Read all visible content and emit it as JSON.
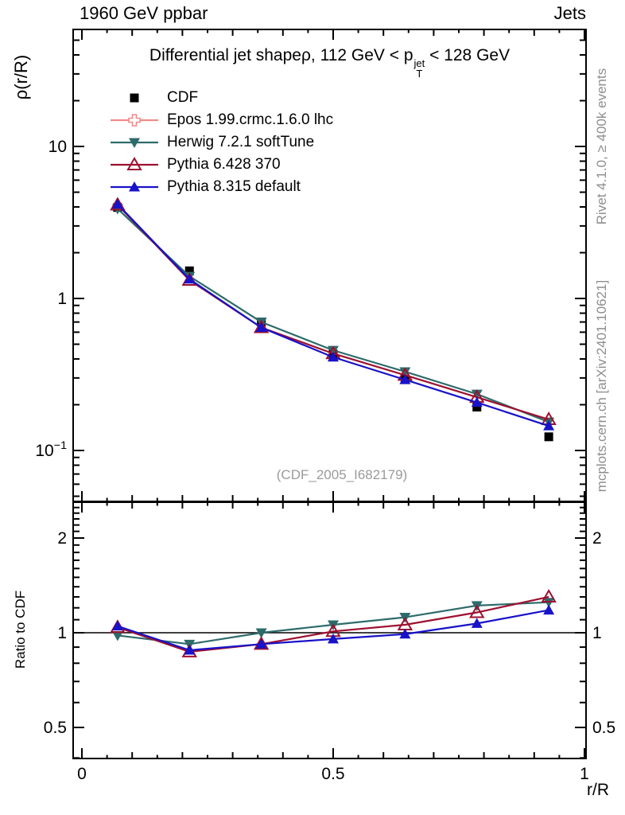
{
  "header": {
    "left_label": "1960 GeV ppbar",
    "right_label": "Jets"
  },
  "title": {
    "prefix": "Differential jet shapeρ, 112 GeV < p",
    "p_sup": "jet",
    "p_sub": "T",
    "suffix": " < 128 GeV"
  },
  "side_notes": {
    "rivet": "Rivet 4.1.0, ≥ 400k events",
    "mcplots": "mcplots.cern.ch [arXiv:2401.10621]"
  },
  "watermark": "(CDF_2005_I682179)",
  "axis_titles": {
    "y_main": "ρ(r/R)",
    "y_ratio": "Ratio to CDF",
    "x": "r/R"
  },
  "colors": {
    "cdf": "#000000",
    "epos": "#f28b8b",
    "herwig": "#2d6b6b",
    "pythia6": "#9e1030",
    "pythia8": "#1812c8",
    "gray_text": "#8e8e8e",
    "frame": "#000000"
  },
  "chart_data": {
    "type": "line",
    "title": "Differential jet shape ρ, 112 GeV < pT(jet) < 128 GeV",
    "xlabel": "r/R",
    "x": [
      0.071,
      0.214,
      0.357,
      0.5,
      0.643,
      0.786,
      0.929
    ],
    "x_ticks": [
      {
        "label": "0",
        "value": 0
      },
      {
        "label": "0.5",
        "value": 0.5
      },
      {
        "label": "1",
        "value": 1
      }
    ],
    "x_minor_step": 0.05,
    "xlim": [
      -0.017,
      1.003
    ],
    "grid": false,
    "legend_position": "top-left-inside",
    "main_panel": {
      "ylabel": "ρ(r/R)",
      "yscale": "log",
      "ylim": [
        0.047,
        59
      ],
      "y_ticks": [
        {
          "label": "10",
          "value": 10
        },
        {
          "label": "1",
          "value": 1
        },
        {
          "label": "10",
          "sup": "−1",
          "value": 0.1
        }
      ]
    },
    "ratio_panel": {
      "ylabel": "Ratio to CDF",
      "yscale": "log",
      "ylim": [
        0.4,
        2.57
      ],
      "y_ticks": [
        {
          "label": "2",
          "value": 2
        },
        {
          "label": "1",
          "value": 1
        },
        {
          "label": "0.5",
          "value": 0.5
        }
      ],
      "y_minor_ticks": [
        0.4,
        0.6,
        0.7,
        0.8,
        0.9,
        1.1,
        1.2,
        1.3,
        1.4,
        1.5,
        1.6,
        1.7,
        1.8,
        1.9,
        2.1,
        2.2,
        2.3,
        2.4,
        2.5
      ],
      "reference_line": 1
    },
    "series": [
      {
        "name": "cdf",
        "label": "CDF",
        "color": "#000000",
        "marker": "square-filled",
        "line": false,
        "curve_visible": true,
        "values": [
          3.97,
          1.52,
          0.7,
          0.43,
          0.295,
          0.193,
          0.123
        ],
        "ratios": null
      },
      {
        "name": "epos",
        "label": "Epos 1.99.crmc.1.6.0 lhc",
        "color": "#f28b8b",
        "marker": "cross-open",
        "line": true,
        "curve_visible": false,
        "values": null,
        "ratios": null
      },
      {
        "name": "herwig",
        "label": "Herwig 7.2.1 softTune",
        "color": "#2d6b6b",
        "marker": "triangle-down-filled",
        "line": true,
        "curve_visible": true,
        "values": [
          3.89,
          1.4,
          0.7,
          0.456,
          0.33,
          0.235,
          0.154
        ],
        "ratios": [
          0.98,
          0.92,
          1.0,
          1.06,
          1.12,
          1.22,
          1.25
        ]
      },
      {
        "name": "pythia6",
        "label": "Pythia 6.428 370",
        "color": "#9e1030",
        "marker": "triangle-up-open",
        "line": true,
        "curve_visible": true,
        "values": [
          4.13,
          1.32,
          0.644,
          0.434,
          0.313,
          0.224,
          0.16
        ],
        "ratios": [
          1.04,
          0.87,
          0.92,
          1.01,
          1.06,
          1.16,
          1.3
        ]
      },
      {
        "name": "pythia8",
        "label": "Pythia 8.315 default",
        "color": "#1812c8",
        "marker": "triangle-up-filled",
        "line": true,
        "curve_visible": true,
        "values": [
          4.17,
          1.34,
          0.644,
          0.411,
          0.292,
          0.207,
          0.145
        ],
        "ratios": [
          1.05,
          0.88,
          0.92,
          0.955,
          0.99,
          1.07,
          1.18
        ]
      }
    ]
  }
}
